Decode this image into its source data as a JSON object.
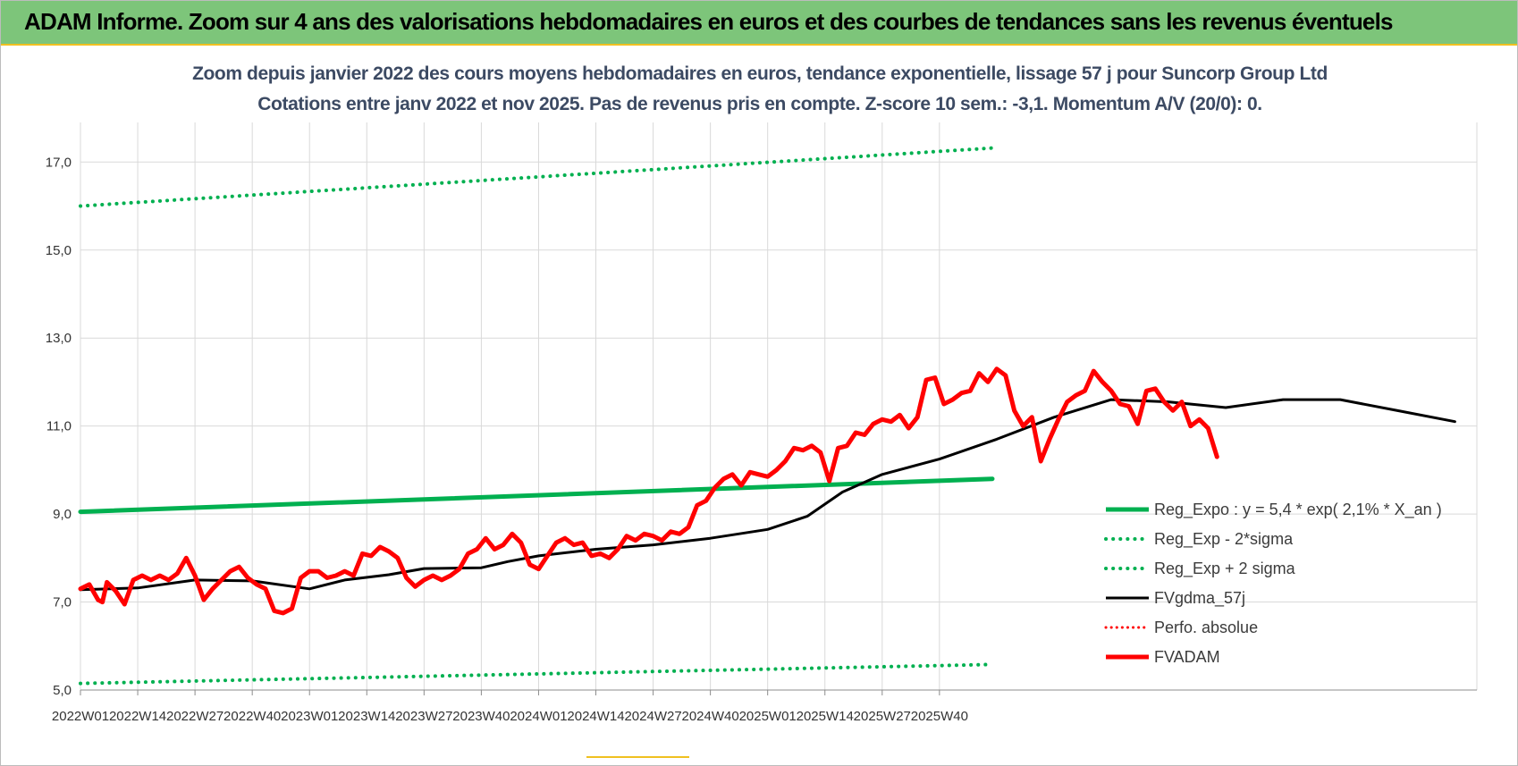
{
  "banner": {
    "title": "ADAM Informe. Zoom sur 4 ans des valorisations hebdomadaires en euros et des courbes de tendances sans les revenus éventuels"
  },
  "colors": {
    "banner": "#7dc57a",
    "trend": "#00b050",
    "price": "#ff0000",
    "moving_avg": "#000000",
    "grid": "#d9d9d9",
    "title": "#3c4a63"
  },
  "chart_data": {
    "type": "line",
    "title": "Zoom depuis janvier 2022 des cours moyens hebdomadaires en euros, tendance exponentielle, lissage 57 j pour Suncorp Group Ltd",
    "subtitle": "Cotations entre janv 2022 et nov 2025. Pas de revenus pris en compte. Z-score 10 sem.: -3,1. Momentum A/V (20/0): 0.",
    "x_ticks": [
      "2022W01",
      "2022W14",
      "2022W27",
      "2022W40",
      "2023W01",
      "2023W14",
      "2023W27",
      "2023W40",
      "2024W01",
      "2024W14",
      "2024W27",
      "2024W40",
      "2025W01",
      "2025W14",
      "2025W27",
      "2025W40"
    ],
    "y_ticks": [
      "5,0",
      "7,0",
      "9,0",
      "11,0",
      "13,0",
      "15,0",
      "17,0"
    ],
    "ylim": [
      5,
      17.9
    ],
    "week_count": 208,
    "grid": true,
    "legend_position": "bottom-right",
    "series": [
      {
        "name": "Reg_Expo : y = 5,4 * exp( 2,1% *  X_an )",
        "color": "#00b050",
        "style": "solid",
        "width": 5,
        "points": [
          [
            0,
            9.05
          ],
          [
            207,
            9.8
          ]
        ]
      },
      {
        "name": "Reg_Exp - 2*sigma",
        "color": "#00b050",
        "style": "dotted",
        "width": 4,
        "points": [
          [
            0,
            5.15
          ],
          [
            207,
            5.58
          ]
        ]
      },
      {
        "name": "Reg_Exp + 2 sigma",
        "color": "#00b050",
        "style": "dotted",
        "width": 4,
        "points": [
          [
            0,
            16.0
          ],
          [
            207,
            17.32
          ]
        ]
      },
      {
        "name": "FVgdma_57j",
        "color": "#000000",
        "style": "solid",
        "width": 3,
        "points": [
          [
            0,
            7.28
          ],
          [
            13,
            7.32
          ],
          [
            26,
            7.5
          ],
          [
            39,
            7.48
          ],
          [
            52,
            7.3
          ],
          [
            60,
            7.5
          ],
          [
            70,
            7.62
          ],
          [
            78,
            7.76
          ],
          [
            91,
            7.78
          ],
          [
            97,
            7.92
          ],
          [
            104,
            8.05
          ],
          [
            117,
            8.2
          ],
          [
            130,
            8.3
          ],
          [
            143,
            8.45
          ],
          [
            156,
            8.65
          ],
          [
            165,
            8.95
          ],
          [
            173,
            9.5
          ],
          [
            182,
            9.9
          ],
          [
            195,
            10.25
          ],
          [
            208,
            10.7
          ],
          [
            221,
            11.2
          ],
          [
            234,
            11.6
          ],
          [
            247,
            11.55
          ],
          [
            260,
            11.42
          ],
          [
            273,
            11.6
          ],
          [
            286,
            11.6
          ],
          [
            299,
            11.35
          ],
          [
            312,
            11.1
          ]
        ]
      },
      {
        "name": "Perfo. absolue",
        "color": "#ff0000",
        "style": "dotted",
        "width": 3,
        "points": []
      },
      {
        "name": "FVADAM",
        "color": "#ff0000",
        "style": "solid",
        "width": 5,
        "points": [
          [
            0,
            7.3
          ],
          [
            2,
            7.4
          ],
          [
            4,
            7.05
          ],
          [
            5,
            7.0
          ],
          [
            6,
            7.45
          ],
          [
            8,
            7.25
          ],
          [
            10,
            6.95
          ],
          [
            12,
            7.5
          ],
          [
            14,
            7.6
          ],
          [
            16,
            7.5
          ],
          [
            18,
            7.6
          ],
          [
            20,
            7.5
          ],
          [
            22,
            7.65
          ],
          [
            24,
            8.0
          ],
          [
            26,
            7.6
          ],
          [
            28,
            7.05
          ],
          [
            30,
            7.3
          ],
          [
            32,
            7.5
          ],
          [
            34,
            7.7
          ],
          [
            36,
            7.8
          ],
          [
            38,
            7.55
          ],
          [
            40,
            7.4
          ],
          [
            42,
            7.3
          ],
          [
            44,
            6.8
          ],
          [
            46,
            6.75
          ],
          [
            48,
            6.85
          ],
          [
            50,
            7.55
          ],
          [
            52,
            7.7
          ],
          [
            54,
            7.7
          ],
          [
            56,
            7.55
          ],
          [
            58,
            7.6
          ],
          [
            60,
            7.7
          ],
          [
            62,
            7.6
          ],
          [
            64,
            8.1
          ],
          [
            66,
            8.05
          ],
          [
            68,
            8.25
          ],
          [
            70,
            8.15
          ],
          [
            72,
            8.0
          ],
          [
            74,
            7.55
          ],
          [
            76,
            7.35
          ],
          [
            78,
            7.5
          ],
          [
            80,
            7.6
          ],
          [
            82,
            7.5
          ],
          [
            84,
            7.6
          ],
          [
            86,
            7.75
          ],
          [
            88,
            8.1
          ],
          [
            90,
            8.2
          ],
          [
            92,
            8.45
          ],
          [
            94,
            8.2
          ],
          [
            96,
            8.3
          ],
          [
            98,
            8.55
          ],
          [
            100,
            8.35
          ],
          [
            102,
            7.85
          ],
          [
            104,
            7.75
          ],
          [
            106,
            8.05
          ],
          [
            108,
            8.35
          ],
          [
            110,
            8.45
          ],
          [
            112,
            8.3
          ],
          [
            114,
            8.35
          ],
          [
            116,
            8.05
          ],
          [
            118,
            8.1
          ],
          [
            120,
            8.0
          ],
          [
            122,
            8.2
          ],
          [
            124,
            8.5
          ],
          [
            126,
            8.4
          ],
          [
            128,
            8.55
          ],
          [
            130,
            8.5
          ],
          [
            132,
            8.4
          ],
          [
            134,
            8.6
          ],
          [
            136,
            8.55
          ],
          [
            138,
            8.7
          ],
          [
            140,
            9.2
          ],
          [
            142,
            9.3
          ],
          [
            144,
            9.6
          ],
          [
            146,
            9.8
          ],
          [
            148,
            9.9
          ],
          [
            150,
            9.65
          ],
          [
            152,
            9.95
          ],
          [
            154,
            9.9
          ],
          [
            156,
            9.85
          ],
          [
            158,
            10.0
          ],
          [
            160,
            10.2
          ],
          [
            162,
            10.5
          ],
          [
            164,
            10.45
          ],
          [
            166,
            10.55
          ],
          [
            168,
            10.4
          ],
          [
            170,
            9.75
          ],
          [
            172,
            10.5
          ],
          [
            174,
            10.55
          ],
          [
            176,
            10.85
          ],
          [
            178,
            10.8
          ],
          [
            180,
            11.05
          ],
          [
            182,
            11.15
          ],
          [
            184,
            11.1
          ],
          [
            186,
            11.25
          ],
          [
            188,
            10.95
          ],
          [
            190,
            11.2
          ],
          [
            192,
            12.05
          ],
          [
            194,
            12.1
          ],
          [
            196,
            11.5
          ],
          [
            198,
            11.6
          ],
          [
            200,
            11.75
          ],
          [
            202,
            11.8
          ],
          [
            204,
            12.2
          ],
          [
            206,
            12.0
          ],
          [
            208,
            12.3
          ],
          [
            210,
            12.15
          ],
          [
            212,
            11.35
          ],
          [
            214,
            11.0
          ],
          [
            216,
            11.2
          ],
          [
            218,
            10.2
          ],
          [
            220,
            10.7
          ],
          [
            222,
            11.15
          ],
          [
            224,
            11.55
          ],
          [
            226,
            11.7
          ],
          [
            228,
            11.8
          ],
          [
            230,
            12.25
          ],
          [
            232,
            12.0
          ],
          [
            234,
            11.8
          ],
          [
            236,
            11.5
          ],
          [
            238,
            11.45
          ],
          [
            240,
            11.05
          ],
          [
            242,
            11.8
          ],
          [
            244,
            11.85
          ],
          [
            246,
            11.55
          ],
          [
            248,
            11.35
          ],
          [
            250,
            11.55
          ],
          [
            252,
            11.0
          ],
          [
            254,
            11.15
          ],
          [
            256,
            10.95
          ],
          [
            258,
            10.3
          ]
        ]
      }
    ]
  }
}
